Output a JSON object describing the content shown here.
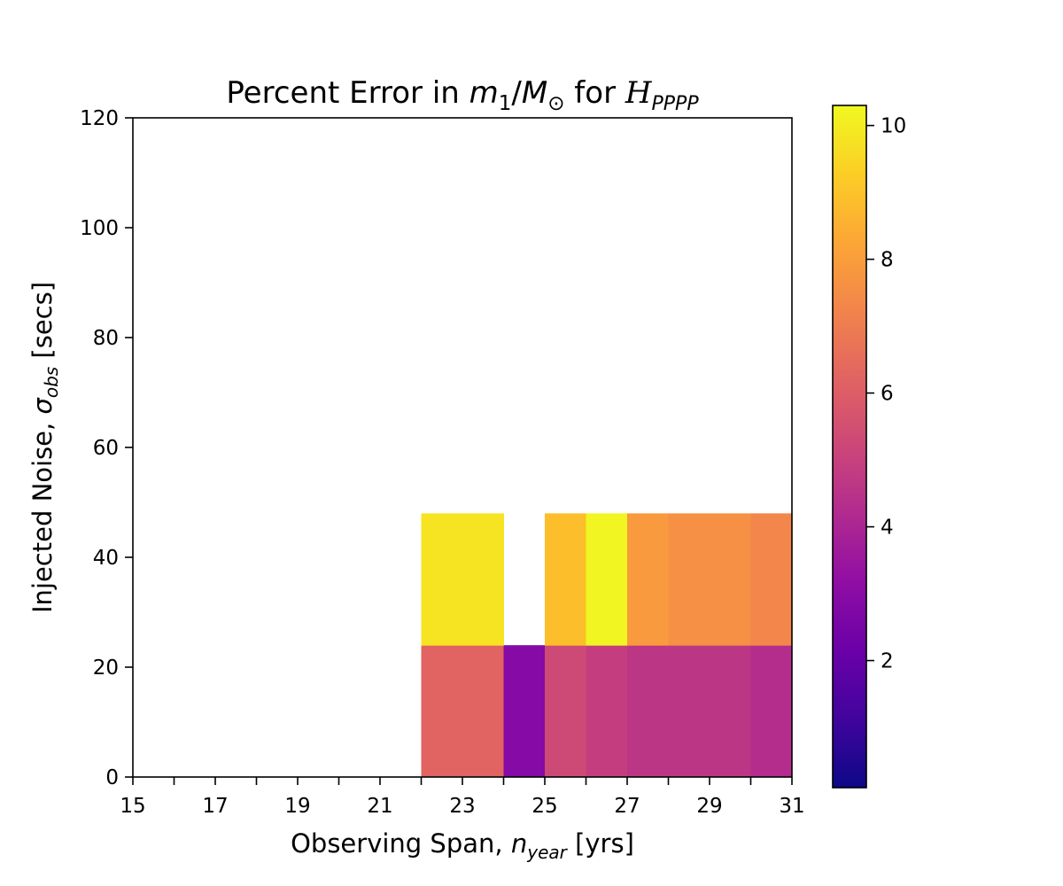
{
  "chart_data": {
    "type": "heatmap",
    "title": {
      "prefix": "Percent Error in ",
      "m": "m",
      "m_sub": "1",
      "slash": "/",
      "M": "M",
      "M_sub": "⊙",
      "middle": " for ",
      "H": "H",
      "H_sub": "PPPP"
    },
    "xlabel": {
      "prefix": "Observing Span, ",
      "var": "n",
      "sub": "year",
      "suffix": " [yrs]"
    },
    "ylabel": {
      "prefix": "Injected Noise, ",
      "var": "σ",
      "sub": "obs",
      "suffix": " [secs]"
    },
    "xlim": [
      15,
      31
    ],
    "ylim": [
      0,
      120
    ],
    "x_ticks_major": [
      15,
      17,
      19,
      21,
      23,
      25,
      27,
      29,
      31
    ],
    "x_ticks_minor": [
      16,
      18,
      20,
      22,
      24,
      26,
      28,
      30
    ],
    "y_ticks": [
      0,
      20,
      40,
      60,
      80,
      100,
      120
    ],
    "colormap": "plasma",
    "clim": [
      0.1,
      10.3
    ],
    "colorbar_ticks": [
      2,
      4,
      6,
      8,
      10
    ],
    "cells": [
      {
        "x0": 22,
        "x1": 24,
        "y0": 0,
        "y1": 24,
        "value": 6.2
      },
      {
        "x0": 24,
        "x1": 25,
        "y0": 0,
        "y1": 24,
        "value": 2.9
      },
      {
        "x0": 25,
        "x1": 26,
        "y0": 0,
        "y1": 24,
        "value": 5.3
      },
      {
        "x0": 26,
        "x1": 27,
        "y0": 0,
        "y1": 24,
        "value": 4.9
      },
      {
        "x0": 27,
        "x1": 28,
        "y0": 0,
        "y1": 24,
        "value": 4.6
      },
      {
        "x0": 28,
        "x1": 29,
        "y0": 0,
        "y1": 24,
        "value": 4.6
      },
      {
        "x0": 29,
        "x1": 30,
        "y0": 0,
        "y1": 24,
        "value": 4.6
      },
      {
        "x0": 30,
        "x1": 31,
        "y0": 0,
        "y1": 24,
        "value": 4.3
      },
      {
        "x0": 22,
        "x1": 24,
        "y0": 24,
        "y1": 48,
        "value": 9.8
      },
      {
        "x0": 25,
        "x1": 26,
        "y0": 24,
        "y1": 48,
        "value": 8.9
      },
      {
        "x0": 26,
        "x1": 27,
        "y0": 24,
        "y1": 48,
        "value": 10.2
      },
      {
        "x0": 27,
        "x1": 28,
        "y0": 24,
        "y1": 48,
        "value": 7.9
      },
      {
        "x0": 28,
        "x1": 29,
        "y0": 24,
        "y1": 48,
        "value": 7.6
      },
      {
        "x0": 29,
        "x1": 30,
        "y0": 24,
        "y1": 48,
        "value": 7.6
      },
      {
        "x0": 30,
        "x1": 31,
        "y0": 24,
        "y1": 48,
        "value": 7.3
      }
    ],
    "grid": false,
    "colorbar_position": "right"
  }
}
